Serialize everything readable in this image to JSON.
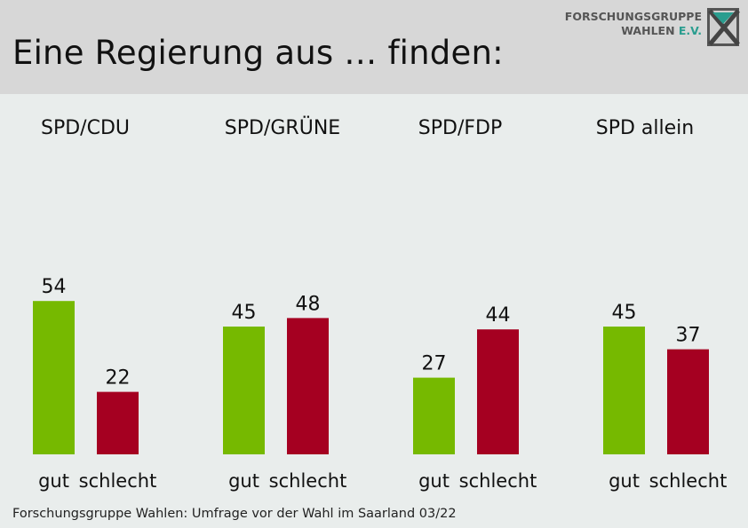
{
  "header": {
    "title": "Eine Regierung aus … finden:",
    "logo_line1": "FORSCHUNGSGRUPPE",
    "logo_line2": "WAHLEN",
    "logo_ev": "E.V."
  },
  "chart_data": {
    "type": "bar",
    "categories": [
      "SPD/CDU",
      "SPD/GRÜNE",
      "SPD/FDP",
      "SPD allein"
    ],
    "bar_labels": [
      "gut",
      "schlecht"
    ],
    "series": [
      {
        "name": "gut",
        "color": "#76b900",
        "values": [
          54,
          45,
          27,
          45
        ]
      },
      {
        "name": "schlecht",
        "color": "#a50021",
        "values": [
          22,
          48,
          44,
          37
        ]
      }
    ],
    "ylim": [
      0,
      100
    ]
  },
  "footer": {
    "source": "Forschungsgruppe Wahlen: Umfrage vor der Wahl im Saarland 03/22"
  }
}
